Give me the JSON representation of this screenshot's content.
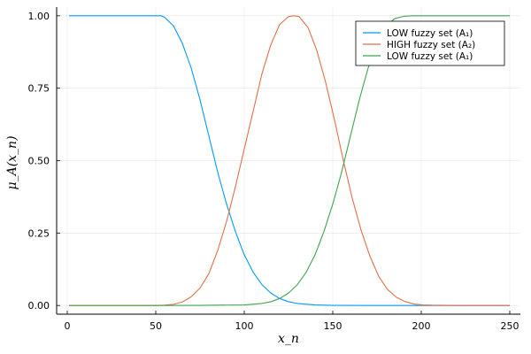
{
  "chart_data": {
    "type": "line",
    "title": "",
    "xlabel": "x_n",
    "ylabel": "μ_A(x_n)",
    "xlim": [
      -6,
      256
    ],
    "ylim": [
      -0.03,
      1.03
    ],
    "xticks": [
      0,
      50,
      100,
      150,
      200,
      250
    ],
    "xtick_labels": [
      "0",
      "50",
      "100",
      "150",
      "200",
      "250"
    ],
    "yticks": [
      0,
      0.25,
      0.5,
      0.75,
      1.0
    ],
    "ytick_labels": [
      "0.00",
      "0.25",
      "0.50",
      "0.75",
      "1.00"
    ],
    "grid": true,
    "legend_position": "top-right",
    "series": [
      {
        "name": "LOW fuzzy set (A₁)",
        "color": "#009AFA",
        "x": [
          1,
          10,
          20,
          30,
          40,
          50,
          53,
          55,
          60,
          65,
          70,
          75,
          80,
          85,
          90,
          95,
          100,
          105,
          110,
          115,
          120,
          125,
          130,
          140,
          150,
          175,
          200,
          225,
          250
        ],
        "y": [
          1,
          1,
          1,
          1,
          1,
          1,
          1,
          0.995,
          0.965,
          0.905,
          0.82,
          0.71,
          0.585,
          0.46,
          0.35,
          0.255,
          0.175,
          0.115,
          0.072,
          0.043,
          0.024,
          0.013,
          0.007,
          0.002,
          0.0005,
          0,
          0,
          0,
          0
        ]
      },
      {
        "name": "HIGH fuzzy set (A₂)",
        "color": "#E36F47",
        "x": [
          1,
          25,
          50,
          55,
          60,
          65,
          70,
          75,
          80,
          85,
          90,
          95,
          100,
          105,
          110,
          115,
          120,
          125,
          128,
          131,
          136,
          141,
          146,
          151,
          156,
          161,
          166,
          171,
          176,
          181,
          186,
          191,
          196,
          201,
          206,
          225,
          250
        ],
        "y": [
          0,
          0,
          0,
          0.001,
          0.004,
          0.012,
          0.03,
          0.06,
          0.11,
          0.19,
          0.29,
          0.41,
          0.54,
          0.67,
          0.8,
          0.9,
          0.97,
          0.997,
          1.0,
          0.997,
          0.96,
          0.88,
          0.77,
          0.64,
          0.5,
          0.37,
          0.26,
          0.17,
          0.1,
          0.055,
          0.028,
          0.013,
          0.005,
          0.002,
          0.001,
          0,
          0
        ]
      },
      {
        "name": "LOW fuzzy set (A₁)",
        "color": "#3EA44E",
        "x": [
          1,
          50,
          75,
          100,
          110,
          115,
          120,
          125,
          130,
          135,
          140,
          145,
          150,
          155,
          160,
          165,
          170,
          175,
          180,
          185,
          190,
          195,
          198,
          200,
          210,
          225,
          250
        ],
        "y": [
          0,
          0,
          0.0005,
          0.002,
          0.007,
          0.013,
          0.024,
          0.043,
          0.072,
          0.115,
          0.175,
          0.255,
          0.35,
          0.46,
          0.585,
          0.71,
          0.82,
          0.905,
          0.965,
          0.99,
          0.998,
          1,
          1,
          1,
          1,
          1,
          1
        ]
      }
    ]
  }
}
